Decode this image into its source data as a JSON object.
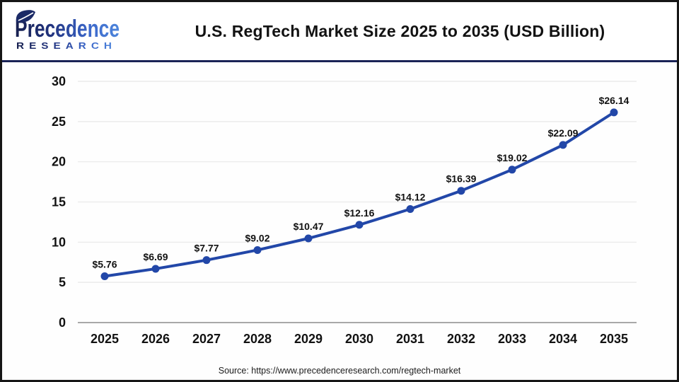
{
  "header": {
    "logo": {
      "brand": "Precedence",
      "sub_brand": "RESEARCH"
    },
    "title": "U.S. RegTech Market Size 2025 to 2035 (USD Billion)"
  },
  "footer": {
    "source": "Source: https://www.precedenceresearch.com/regtech-market"
  },
  "colors": {
    "line": "#2247A8",
    "marker": "#2247A8",
    "grid": "#ECECEC",
    "zero_axis": "#A8A8A8",
    "text": "#121212",
    "navy_divider": "#1A2356",
    "logo_dark": "#17204F",
    "logo_mid": "#21337F",
    "logo_blue": "#3B66C9",
    "logo_light": "#4E86DC"
  },
  "chart_data": {
    "type": "line",
    "title": "U.S. RegTech Market Size 2025 to 2035 (USD Billion)",
    "categories": [
      "2025",
      "2026",
      "2027",
      "2028",
      "2029",
      "2030",
      "2031",
      "2032",
      "2033",
      "2034",
      "2035"
    ],
    "series": [
      {
        "name": "U.S. RegTech Market Size (USD Billion)",
        "values": [
          5.76,
          6.69,
          7.77,
          9.02,
          10.47,
          12.16,
          14.12,
          16.39,
          19.02,
          22.09,
          26.14
        ]
      }
    ],
    "data_labels": [
      "$5.76",
      "$6.69",
      "$7.77",
      "$9.02",
      "$10.47",
      "$12.16",
      "$14.12",
      "$16.39",
      "$19.02",
      "$22.09",
      "$26.14"
    ],
    "y_ticks": [
      30,
      25,
      20,
      15,
      10,
      5,
      0
    ],
    "ylim": [
      0,
      30
    ],
    "xlabel": "",
    "ylabel": "",
    "grid": true,
    "legend": false
  }
}
